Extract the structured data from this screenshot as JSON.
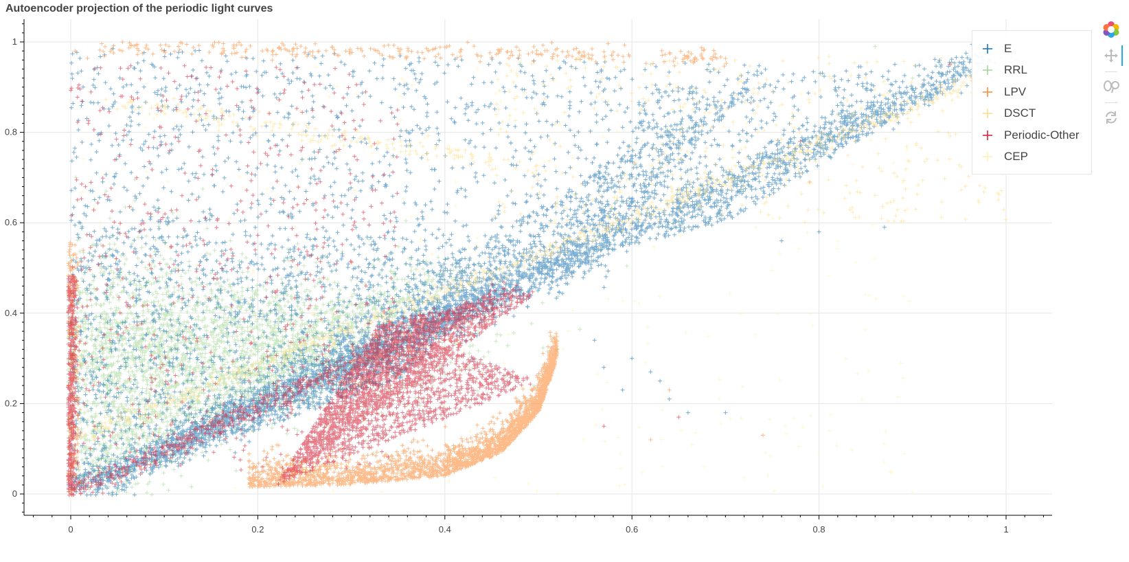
{
  "chart_data": {
    "type": "scatter",
    "title": "Autoencoder projection of the periodic light curves",
    "xlabel": "",
    "ylabel": "",
    "xlim": [
      -0.05,
      1.05
    ],
    "ylim": [
      -0.05,
      1.05
    ],
    "x_ticks": [
      0,
      0.2,
      0.4,
      0.6,
      0.8,
      1
    ],
    "y_ticks": [
      0,
      0.2,
      0.4,
      0.6,
      0.8,
      1
    ],
    "x_tick_labels": [
      "0",
      "0.2",
      "0.4",
      "0.6",
      "0.8",
      "1"
    ],
    "y_tick_labels": [
      "0",
      "0.2",
      "0.4",
      "0.6",
      "0.8",
      "1"
    ],
    "grid": true,
    "legend_position": "top-right",
    "marker": "cross",
    "series": [
      {
        "name": "E",
        "color": "#1f78b4",
        "regions": [
          {
            "shape": "band",
            "from": [
              0.0,
              0.0
            ],
            "to": [
              1.0,
              0.98
            ],
            "width": 0.03,
            "count": 1600
          },
          {
            "shape": "band",
            "from": [
              0.0,
              0.0
            ],
            "to": [
              0.55,
              0.52
            ],
            "width": 0.04,
            "count": 900
          },
          {
            "shape": "fan",
            "apex": [
              0.0,
              0.0
            ],
            "corners": [
              [
                0.0,
                0.99
              ],
              [
                0.75,
                0.95
              ],
              [
                0.55,
                0.5
              ]
            ],
            "count": 2600
          },
          {
            "shape": "fan",
            "apex": [
              0.0,
              0.0
            ],
            "corners": [
              [
                0.0,
                0.6
              ],
              [
                0.5,
                0.55
              ],
              [
                0.35,
                0.25
              ]
            ],
            "count": 1500
          },
          {
            "shape": "fan",
            "apex": [
              0.5,
              0.5
            ],
            "corners": [
              [
                0.62,
                0.9
              ],
              [
                1.0,
                0.98
              ],
              [
                0.7,
                0.6
              ]
            ],
            "count": 800
          }
        ],
        "outliers": [
          [
            0.57,
            0.28
          ],
          [
            0.6,
            0.3
          ],
          [
            0.62,
            0.27
          ],
          [
            0.63,
            0.25
          ],
          [
            0.64,
            0.21
          ],
          [
            0.66,
            0.18
          ],
          [
            0.7,
            0.18
          ],
          [
            0.87,
            0.59
          ],
          [
            0.8,
            0.58
          ],
          [
            0.76,
            0.56
          ],
          [
            0.56,
            0.34
          ],
          [
            0.59,
            0.23
          ]
        ]
      },
      {
        "name": "RRL",
        "color": "#a6d99a",
        "regions": [
          {
            "shape": "blob",
            "center": [
              0.16,
              0.33
            ],
            "spread": [
              0.12,
              0.08
            ],
            "count": 2200
          },
          {
            "shape": "blob",
            "center": [
              0.05,
              0.25
            ],
            "spread": [
              0.05,
              0.15
            ],
            "count": 900
          },
          {
            "shape": "band",
            "from": [
              0.0,
              0.05
            ],
            "to": [
              0.4,
              0.5
            ],
            "width": 0.05,
            "count": 700
          }
        ],
        "outliers": [
          [
            0.86,
            0.99
          ],
          [
            0.62,
            0.95
          ],
          [
            0.9,
            0.92
          ]
        ]
      },
      {
        "name": "LPV",
        "color": "#fd8d3c",
        "regions": [
          {
            "shape": "curve",
            "points": [
              [
                0.19,
                0.015
              ],
              [
                0.3,
                0.02
              ],
              [
                0.4,
                0.04
              ],
              [
                0.46,
                0.09
              ],
              [
                0.5,
                0.18
              ],
              [
                0.52,
                0.3
              ]
            ],
            "width": 0.03,
            "count": 2400
          },
          {
            "shape": "band",
            "from": [
              0.0,
              0.0
            ],
            "to": [
              0.0,
              0.55
            ],
            "width": 0.01,
            "count": 300
          },
          {
            "shape": "band",
            "from": [
              0.02,
              0.99
            ],
            "to": [
              0.7,
              0.97
            ],
            "width": 0.02,
            "count": 300
          }
        ],
        "outliers": [
          [
            0.74,
            0.13
          ],
          [
            0.62,
            0.12
          ],
          [
            0.79,
            0.69
          ],
          [
            0.64,
            0.23
          ],
          [
            0.2,
            0.03
          ]
        ]
      },
      {
        "name": "DSCT",
        "color": "#fee08b",
        "regions": [
          {
            "shape": "band",
            "from": [
              0.0,
              0.12
            ],
            "to": [
              1.0,
              0.94
            ],
            "width": 0.015,
            "count": 700
          },
          {
            "shape": "band",
            "from": [
              0.05,
              0.87
            ],
            "to": [
              0.5,
              0.72
            ],
            "width": 0.02,
            "count": 200
          },
          {
            "shape": "scatter",
            "box": [
              [
                0.45,
                0.6
              ],
              [
                1.0,
                0.97
              ]
            ],
            "count": 400
          }
        ],
        "outliers": []
      },
      {
        "name": "Periodic-Other",
        "color": "#d7263d",
        "regions": [
          {
            "shape": "fan",
            "apex": [
              0.22,
              0.02
            ],
            "corners": [
              [
                0.5,
                0.45
              ],
              [
                0.33,
                0.38
              ],
              [
                0.5,
                0.25
              ]
            ],
            "count": 2600
          },
          {
            "shape": "band",
            "from": [
              0.0,
              0.0
            ],
            "to": [
              0.47,
              0.45
            ],
            "width": 0.02,
            "count": 700
          },
          {
            "shape": "band",
            "from": [
              0.0,
              0.0
            ],
            "to": [
              0.0,
              0.48
            ],
            "width": 0.006,
            "count": 500
          },
          {
            "shape": "scatter",
            "box": [
              [
                0.0,
                0.05
              ],
              [
                0.35,
                0.95
              ]
            ],
            "count": 600
          }
        ],
        "outliers": [
          [
            0.57,
            0.15
          ],
          [
            0.65,
            0.17
          ],
          [
            0.94,
            0.95
          ],
          [
            0.78,
            0.78
          ]
        ]
      },
      {
        "name": "CEP",
        "color": "#fff3b0",
        "regions": [
          {
            "shape": "scatter",
            "box": [
              [
                0.0,
                0.0
              ],
              [
                0.9,
                0.95
              ]
            ],
            "count": 300
          }
        ],
        "outliers": []
      }
    ]
  },
  "toolbar": {
    "tools": [
      {
        "name": "bokeh-logo",
        "active": false
      },
      {
        "name": "pan-tool",
        "active": true
      },
      {
        "name": "wheel-zoom-tool",
        "active": false
      },
      {
        "name": "reset-tool",
        "active": false
      }
    ]
  }
}
